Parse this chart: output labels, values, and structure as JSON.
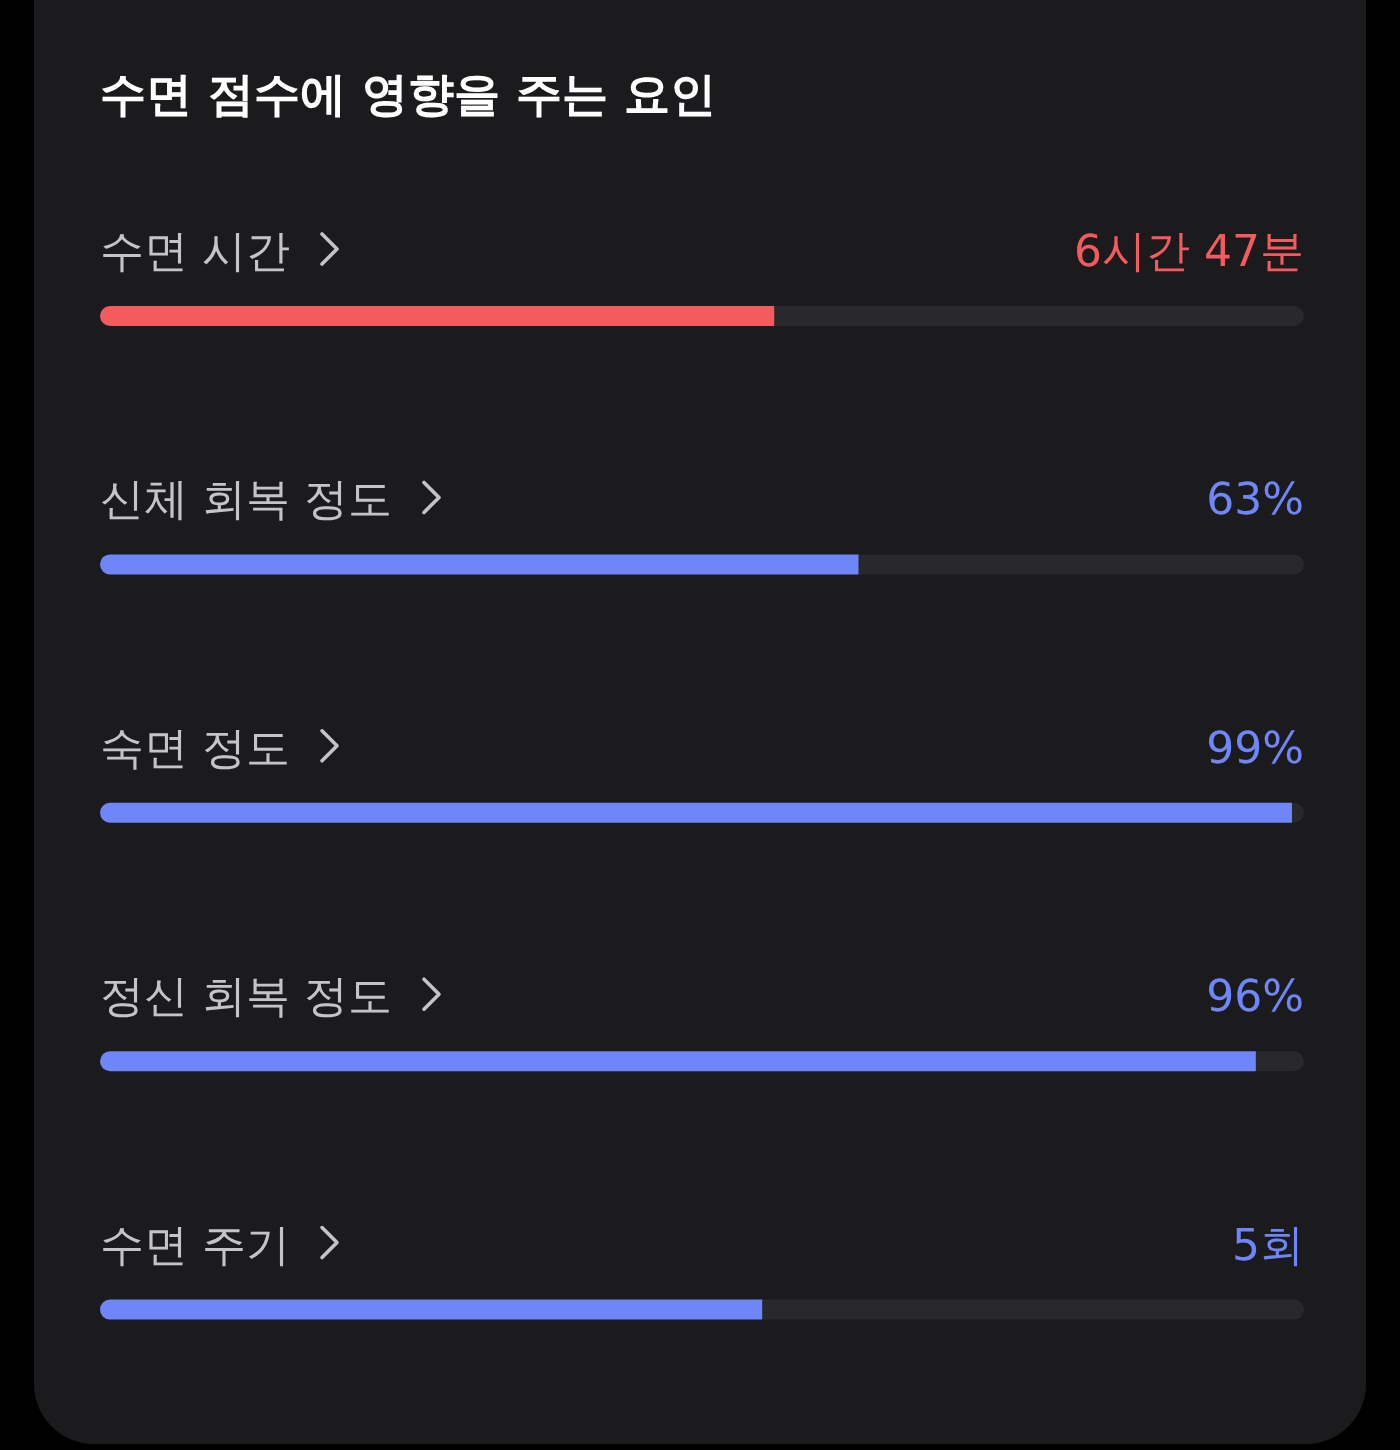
{
  "chart_data": {
    "type": "bar",
    "orientation": "horizontal",
    "title": "수면 점수에 영향을 주는 요인",
    "categories": [
      "수면 시간",
      "신체 회복 정도",
      "숙면 정도",
      "정신 회복 정도",
      "수면 주기"
    ],
    "values": [
      56,
      63,
      99,
      96,
      55
    ],
    "colors": [
      "#f45b5e",
      "#6f86f8",
      "#6f86f8",
      "#6f86f8",
      "#6f86f8"
    ],
    "value_labels": [
      null,
      "63%",
      "99%",
      "96%",
      null
    ],
    "annotations": [
      "6시간 47분",
      "5회"
    ],
    "xlim": [
      0,
      100
    ],
    "tick_labels": "y"
  }
}
